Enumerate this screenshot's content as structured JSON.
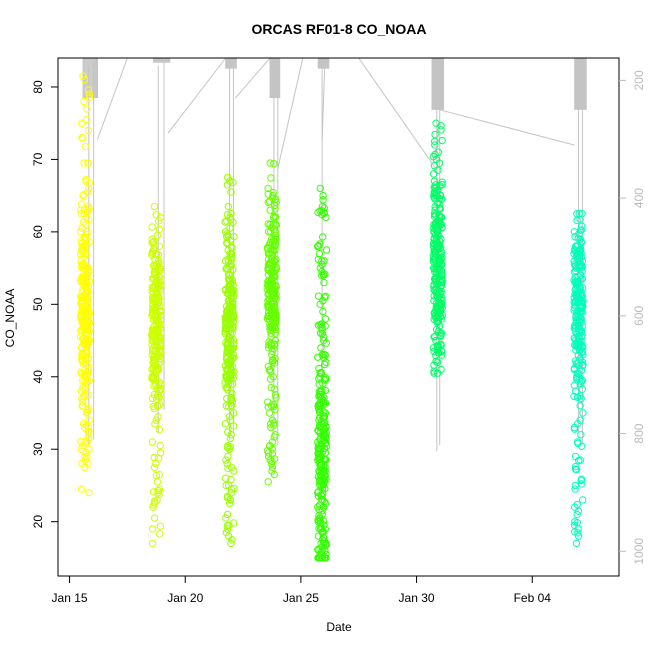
{
  "chart_data": {
    "type": "scatter",
    "title": "ORCAS RF01-8 CO_NOAA",
    "xlabel": "Date",
    "ylabel": "CO_NOAA",
    "x_is_date": true,
    "xlim": [
      "2016-01-14T12:00",
      "2016-02-07T18:00"
    ],
    "ylim": [
      12.5,
      84
    ],
    "y_ticks": [
      20,
      30,
      40,
      50,
      60,
      70,
      80
    ],
    "x_ticks": [
      {
        "date": "2016-01-15",
        "label": "Jan 15"
      },
      {
        "date": "2016-01-20",
        "label": "Jan 20"
      },
      {
        "date": "2016-01-25",
        "label": "Jan 25"
      },
      {
        "date": "2016-01-30",
        "label": "Jan 30"
      },
      {
        "date": "2016-02-04",
        "label": "Feb 04"
      }
    ],
    "secondary_axis": {
      "position": "right",
      "reversed": true,
      "range": [
        162,
        1042
      ],
      "ticks": [
        200,
        400,
        600,
        800,
        1000
      ],
      "color": "#bbbbbb"
    },
    "grid": false,
    "legend": "none",
    "series": [
      {
        "flight": "RF01",
        "date": "2016-01-15T16:00",
        "color": "#ffff00",
        "y_range": [
          24,
          81.5
        ],
        "y_center": 50,
        "y_spread": 6,
        "values": [
          81.5,
          81,
          79,
          78,
          75.5,
          75,
          74,
          73,
          69.5,
          69.5,
          67,
          66,
          65,
          63,
          62.5,
          61,
          60.5,
          60,
          59,
          58,
          57.5,
          56.5,
          56,
          55.5,
          55,
          54.5,
          54,
          53.5,
          53,
          52.5,
          52,
          52,
          51.5,
          51,
          51,
          50.5,
          50.5,
          50,
          50,
          49.5,
          49.5,
          49,
          49,
          48.5,
          48,
          48,
          47.5,
          47,
          47,
          46.5,
          46,
          45.5,
          45,
          44.5,
          44,
          43,
          42.5,
          42,
          41,
          40,
          39.5,
          38.5,
          38,
          37,
          36,
          35.5,
          35,
          34,
          33.5,
          33,
          32.5,
          32,
          31.5,
          31,
          30.5,
          30,
          30,
          29.5,
          29,
          28.5,
          28,
          27.5,
          24.5,
          24
        ]
      },
      {
        "flight": "RF02",
        "date": "2016-01-18T18:00",
        "color": "#ccff00",
        "y_range": [
          17,
          63.5
        ],
        "y_center": 47,
        "y_spread": 5,
        "values": [
          63.5,
          62,
          59.5,
          59,
          58.5,
          58,
          57.5,
          56,
          55.5,
          55,
          54,
          53.5,
          53,
          52.5,
          52,
          51.5,
          51,
          50.5,
          50,
          49.5,
          49,
          48.5,
          48,
          47.5,
          47,
          46.5,
          46,
          45.5,
          45,
          44.5,
          44,
          43.5,
          43,
          42.5,
          42,
          41.5,
          41,
          40,
          39,
          38,
          37.5,
          37,
          36,
          34,
          33.5,
          31,
          30.5,
          29.5,
          28,
          27.5,
          26.5,
          25.5,
          24.5,
          24,
          23,
          22,
          20.5,
          19,
          17
        ]
      },
      {
        "flight": "RF03",
        "date": "2016-01-21T22:00",
        "color": "#99ff00",
        "y_range": [
          17,
          67.5
        ],
        "y_center": 47,
        "y_spread": 6,
        "values": [
          67.5,
          67,
          66.5,
          65.5,
          63.5,
          62,
          60.5,
          59.5,
          58.5,
          57.5,
          56,
          55,
          54,
          53.5,
          53,
          52.5,
          52,
          51.5,
          51,
          50.5,
          50,
          49.5,
          49,
          48.5,
          48,
          47.5,
          47,
          46.5,
          46,
          45.5,
          45,
          44.5,
          44,
          43.5,
          43,
          42.5,
          42,
          41,
          40,
          39.5,
          38.5,
          37,
          36,
          35,
          34,
          33.5,
          32,
          31.5,
          30,
          29,
          28.5,
          28,
          27.5,
          27,
          26,
          25,
          24.5,
          24,
          23.5,
          23,
          22.5,
          21,
          20.5,
          19.5,
          19,
          18.5,
          18,
          17.5,
          17
        ]
      },
      {
        "flight": "RF04",
        "date": "2016-01-23T18:00",
        "color": "#66ff00",
        "y_range": [
          25.5,
          69.5
        ],
        "y_center": 52,
        "y_spread": 5,
        "values": [
          69.5,
          66,
          64.5,
          63,
          62,
          61,
          60,
          59.5,
          59,
          58.5,
          58,
          57.5,
          57,
          56.5,
          56,
          55.5,
          55,
          54.5,
          54,
          53.5,
          53,
          52.5,
          52,
          51.5,
          51,
          50.5,
          50,
          49.5,
          49,
          48.5,
          48,
          47.5,
          47,
          46.5,
          46,
          45,
          44.5,
          44,
          43.5,
          42.5,
          42,
          41,
          40,
          38.5,
          37.5,
          36.5,
          36,
          35,
          34,
          33.5,
          33,
          32,
          31,
          30.5,
          30,
          29.5,
          29,
          28.5,
          28,
          27.5,
          27,
          26.5,
          25.5
        ]
      },
      {
        "flight": "RF05",
        "date": "2016-01-25T22:00",
        "color": "#33ff00",
        "y_range": [
          15,
          66
        ],
        "y_center": 28,
        "y_spread": 8,
        "values": [
          66,
          65,
          63.5,
          62,
          58,
          57.5,
          57,
          56,
          55.5,
          55,
          54.5,
          54,
          53,
          51,
          50.5,
          50,
          49,
          48,
          47,
          46.5,
          46,
          45.5,
          45,
          44,
          43,
          42,
          40.5,
          40,
          38,
          37,
          36.5,
          36,
          35.5,
          35,
          34,
          33.5,
          33,
          32.5,
          32,
          31.5,
          31,
          30.5,
          30,
          29.5,
          29,
          28.5,
          28,
          27.5,
          27,
          26.5,
          26,
          25.5,
          25,
          24.5,
          24,
          23.5,
          23,
          22.5,
          22,
          21.5,
          21,
          20.5,
          20,
          19.5,
          19,
          18.5,
          18,
          17.5,
          17,
          16.5,
          16,
          15.5,
          15
        ]
      },
      {
        "flight": "RF06",
        "date": "2016-01-30T22:00",
        "color": "#00ff66",
        "y_range": [
          40.5,
          75
        ],
        "y_center": 54,
        "y_spread": 6,
        "values": [
          75,
          72.5,
          72,
          71,
          70,
          69.5,
          68.5,
          68,
          67,
          66.5,
          66,
          65.5,
          65,
          64.5,
          64,
          63.5,
          63,
          62.5,
          62,
          61.5,
          61,
          60.5,
          60,
          59.5,
          59,
          58.5,
          58,
          57.5,
          57,
          56.5,
          56,
          55.5,
          55,
          54.5,
          54,
          53.5,
          53,
          52.5,
          52,
          51.5,
          51,
          50.5,
          50,
          49.5,
          49,
          48.5,
          48,
          47.5,
          47,
          46.5,
          46,
          45.5,
          45,
          44.5,
          44,
          43.5,
          43,
          42,
          41,
          40.5
        ]
      },
      {
        "flight": "RF07",
        "date": "2016-02-06T00:00",
        "color": "#00ffbb",
        "y_range": [
          17,
          62.5
        ],
        "y_center": 50,
        "y_spread": 6,
        "values": [
          62.5,
          59,
          58.5,
          58,
          57.5,
          57,
          56.5,
          56,
          55.5,
          55,
          54.5,
          54,
          53.5,
          53,
          52.5,
          52,
          51.5,
          51,
          50.5,
          50,
          49.5,
          49,
          48.5,
          48,
          47.5,
          47,
          46.5,
          46,
          45.5,
          45,
          44.5,
          44,
          43.5,
          43,
          42.5,
          42,
          41.5,
          41,
          40.5,
          40,
          39.5,
          39,
          38,
          37,
          36,
          35,
          34,
          33,
          32,
          31,
          29,
          28.5,
          25,
          24.5,
          23,
          22,
          21,
          20,
          19.5,
          19,
          18,
          17
        ]
      }
    ],
    "altitude_trace": {
      "color": "#c4c4c4",
      "note": "thin gray flight-altitude trace plotted against the reversed right axis",
      "segments": [
        [
          "2016-01-15T14:00",
          165,
          "2016-01-16T05:00",
          230,
          15
        ],
        [
          "2016-01-18T15:00",
          162,
          "2016-01-19T08:00",
          170,
          20
        ],
        [
          "2016-01-21T18:00",
          162,
          "2016-01-22T05:00",
          180,
          20
        ],
        [
          "2016-01-23T16:00",
          165,
          "2016-01-24T02:00",
          230,
          15
        ],
        [
          "2016-01-25T18:00",
          162,
          "2016-01-26T05:00",
          180,
          20
        ],
        [
          "2016-01-30T16:00",
          162,
          "2016-01-31T04:00",
          250,
          20
        ],
        [
          "2016-02-05T20:00",
          162,
          "2016-02-06T08:00",
          250,
          20
        ]
      ],
      "spikes": [
        [
          "2016-01-15T20:00",
          175,
          820
        ],
        [
          "2016-01-16T01:00",
          170,
          810
        ],
        [
          "2016-01-18T20:00",
          175,
          800
        ],
        [
          "2016-01-19T02:00",
          170,
          760
        ],
        [
          "2016-01-21T22:00",
          165,
          810
        ],
        [
          "2016-01-22T02:00",
          170,
          800
        ],
        [
          "2016-01-23T20:00",
          165,
          800
        ],
        [
          "2016-01-24T00:00",
          170,
          820
        ],
        [
          "2016-01-25T22:00",
          165,
          790
        ],
        [
          "2016-01-30T21:00",
          180,
          830
        ],
        [
          "2016-01-31T00:00",
          200,
          820
        ],
        [
          "2016-02-06T00:00",
          180,
          800
        ],
        [
          "2016-02-06T04:00",
          200,
          820
        ]
      ],
      "links": [
        [
          "2016-01-16T05:00",
          300,
          "2016-01-17T12:00",
          162
        ],
        [
          "2016-01-19T06:00",
          290,
          "2016-01-21T18:00",
          162
        ],
        [
          "2016-01-22T04:00",
          230,
          "2016-01-23T16:00",
          162
        ],
        [
          "2016-01-24T00:00",
          350,
          "2016-01-25T02:00",
          162
        ],
        [
          "2016-01-25T22:00",
          300,
          "2016-01-26T01:00",
          162
        ],
        [
          "2016-01-27T12:00",
          162,
          "2016-01-30T20:00",
          350
        ],
        [
          "2016-01-31T00:00",
          250,
          "2016-02-05T20:00",
          310
        ]
      ]
    }
  }
}
